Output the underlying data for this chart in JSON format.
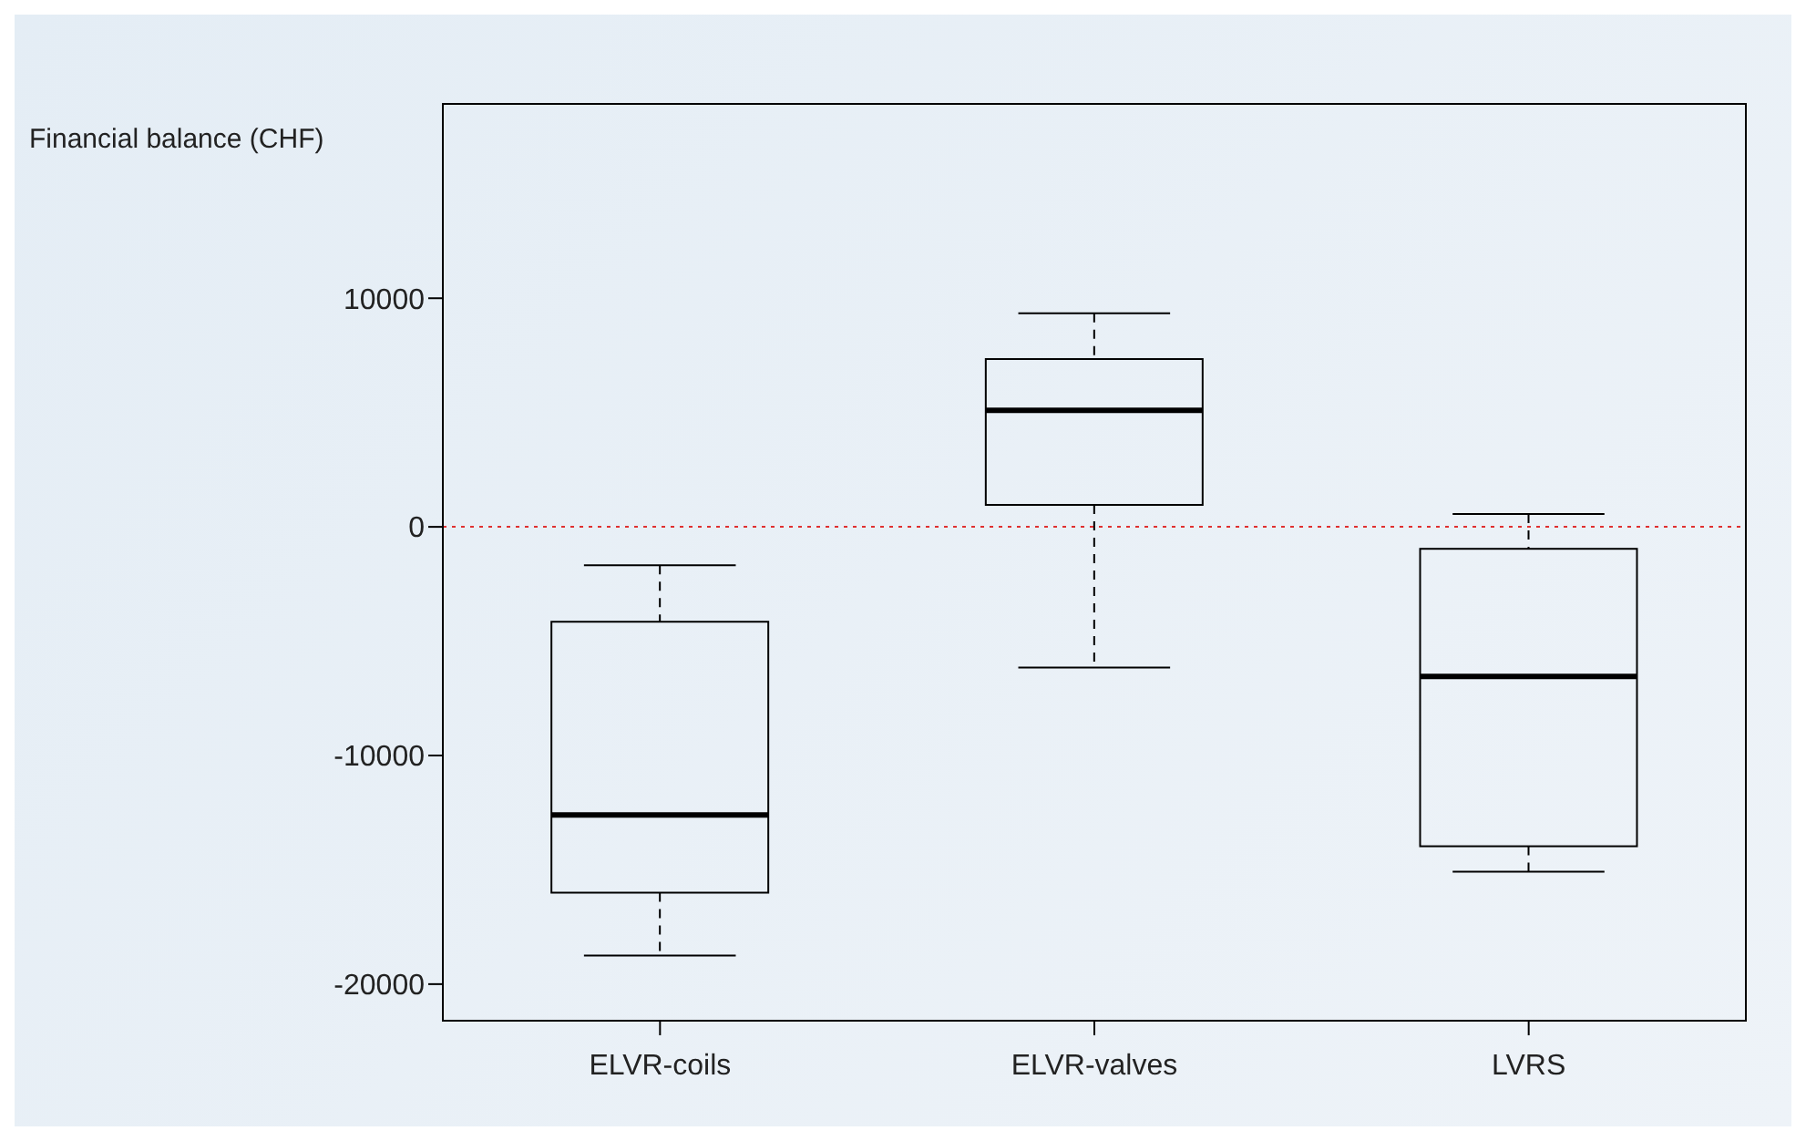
{
  "chart_data": {
    "type": "box",
    "ylabel": "Financial balance (CHF)",
    "categories": [
      "ELVR-coils",
      "ELVR-valves",
      "LVRS"
    ],
    "boxes": [
      {
        "low": -18750,
        "q1": -16000,
        "median": -12600,
        "q3": -4150,
        "high": -1680
      },
      {
        "low": -6150,
        "q1": 960,
        "median": 5100,
        "q3": 7340,
        "high": 9340
      },
      {
        "low": -15080,
        "q1": -13970,
        "median": -6540,
        "q3": -960,
        "high": 560
      }
    ],
    "ylim": [
      -21600,
      18500
    ],
    "yticks": [
      -20000,
      -10000,
      0,
      10000
    ],
    "ref_lines": [
      {
        "axis": "y",
        "value": 0,
        "color": "#e03030",
        "line_style": "dotted"
      }
    ],
    "grid": false,
    "legend": false
  }
}
